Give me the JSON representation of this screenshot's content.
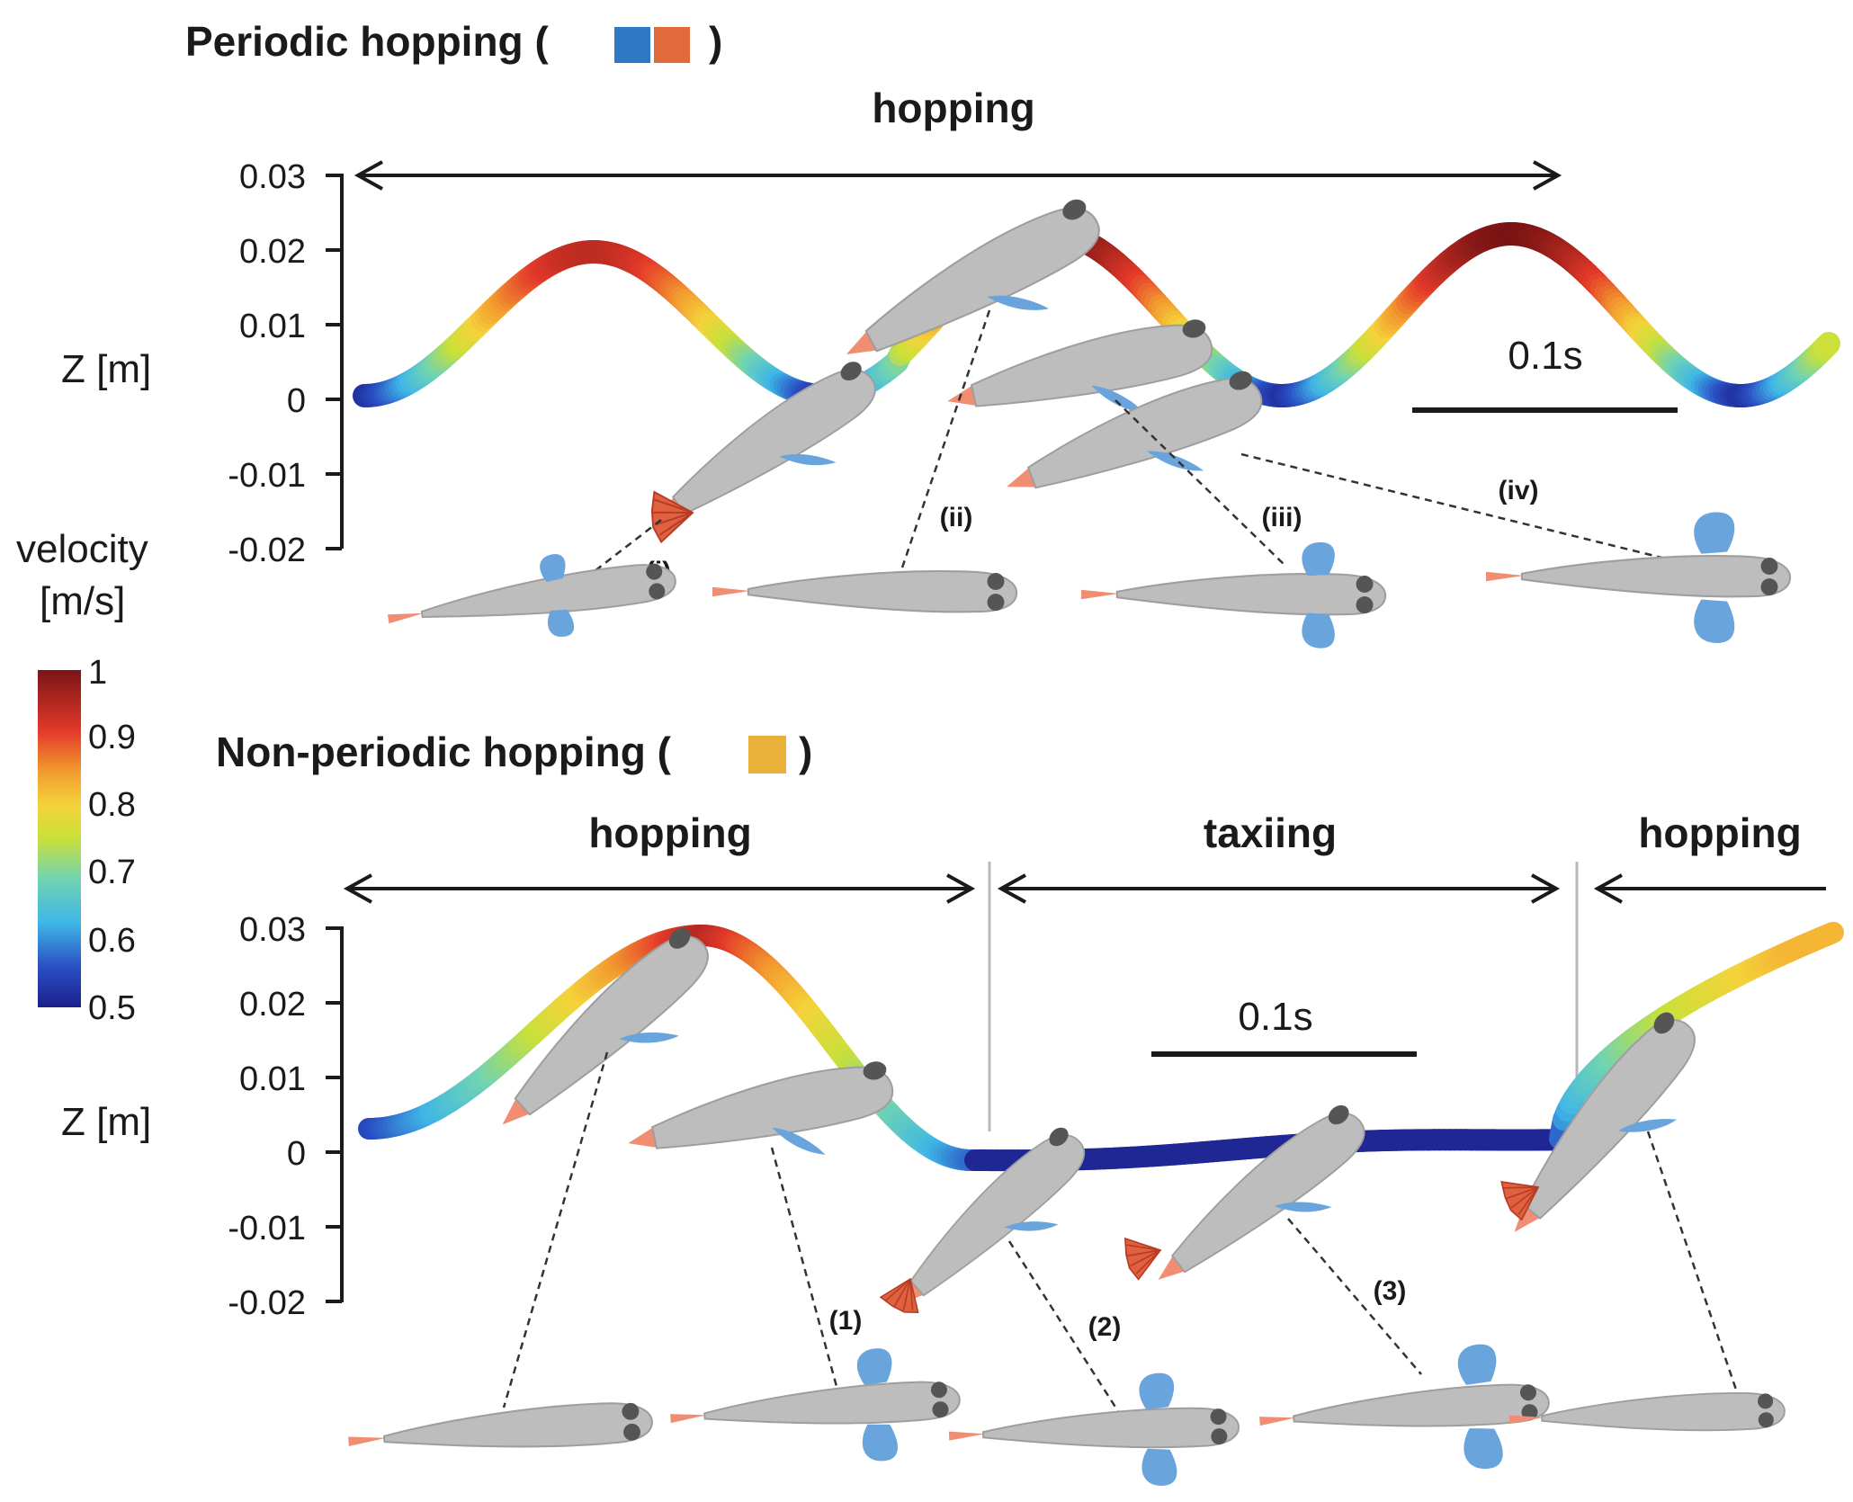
{
  "colors": {
    "swatch_blue": "#2f78c4",
    "swatch_orange": "#e06a3a",
    "swatch_yellow": "#e9b13a",
    "fish_gray": "#bdbdbd",
    "fin_blue": "#6aa4dc",
    "tail_salmon": "#f08d72"
  },
  "colorbar": {
    "label_line1": "velocity",
    "label_line2": "[m/s]",
    "ticks": [
      "1",
      "0.9",
      "0.8",
      "0.7",
      "0.6",
      "0.5"
    ]
  },
  "panel_top": {
    "title": "Periodic hopping (",
    "title_close": ")",
    "phase_label": "hopping",
    "ylabel": "Z [m]",
    "yticks": [
      "0.03",
      "0.02",
      "0.01",
      "0",
      "-0.01",
      "-0.02"
    ],
    "scale_label": "0.1s",
    "callouts": [
      "(i)",
      "(ii)",
      "(iii)",
      "(iv)"
    ]
  },
  "panel_bottom": {
    "title": "Non-periodic hopping (",
    "title_close": ")",
    "phase_labels": [
      "hopping",
      "taxiing",
      "hopping"
    ],
    "ylabel": "Z [m]",
    "yticks": [
      "0.03",
      "0.02",
      "0.01",
      "0",
      "-0.01",
      "-0.02"
    ],
    "scale_label": "0.1s",
    "callouts": [
      "(1)",
      "(2)",
      "(3)"
    ]
  },
  "icons": [
    "fish-side-icon",
    "fish-top-icon",
    "double-arrow-icon"
  ]
}
